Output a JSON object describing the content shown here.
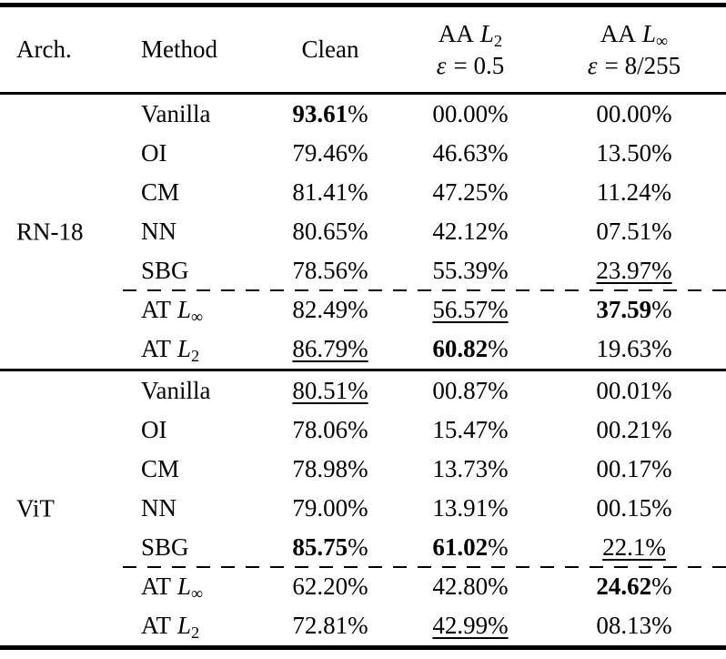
{
  "table": {
    "percent_sign": "%",
    "header": {
      "arch": "Arch.",
      "method": "Method",
      "clean": "Clean",
      "aa_l2": {
        "label": "AA",
        "var": "L",
        "sub": "2",
        "eps_sym": "ε",
        "eps_val": "= 0.5"
      },
      "aa_linf": {
        "label": "AA",
        "var": "L",
        "sub": "∞",
        "eps_sym": "ε",
        "eps_val": "= 8/255"
      }
    },
    "sections": [
      {
        "arch": "RN-18",
        "rows": [
          {
            "method": {
              "text": "Vanilla"
            },
            "cells": [
              {
                "v": "93.61",
                "bold": true
              },
              {
                "v": "00.00"
              },
              {
                "v": "00.00"
              }
            ]
          },
          {
            "method": {
              "text": "OI"
            },
            "cells": [
              {
                "v": "79.46"
              },
              {
                "v": "46.63"
              },
              {
                "v": "13.50"
              }
            ]
          },
          {
            "method": {
              "text": "CM"
            },
            "cells": [
              {
                "v": "81.41"
              },
              {
                "v": "47.25"
              },
              {
                "v": "11.24"
              }
            ]
          },
          {
            "method": {
              "text": "NN"
            },
            "cells": [
              {
                "v": "80.65"
              },
              {
                "v": "42.12"
              },
              {
                "v": "07.51"
              }
            ]
          },
          {
            "method": {
              "text": "SBG"
            },
            "cells": [
              {
                "v": "78.56"
              },
              {
                "v": "55.39"
              },
              {
                "v": "23.97",
                "underline": true
              }
            ]
          },
          {
            "method": {
              "text": "AT",
              "var": "L",
              "sub": "∞"
            },
            "dashed_before": true,
            "cells": [
              {
                "v": "82.49"
              },
              {
                "v": "56.57",
                "underline": true
              },
              {
                "v": "37.59",
                "bold": true
              }
            ]
          },
          {
            "method": {
              "text": "AT",
              "var": "L",
              "sub": "2"
            },
            "cells": [
              {
                "v": "86.79",
                "underline": true
              },
              {
                "v": "60.82",
                "bold": true
              },
              {
                "v": "19.63"
              }
            ]
          }
        ]
      },
      {
        "arch": "ViT",
        "rows": [
          {
            "method": {
              "text": "Vanilla"
            },
            "cells": [
              {
                "v": "80.51",
                "underline": true
              },
              {
                "v": "00.87"
              },
              {
                "v": "00.01"
              }
            ]
          },
          {
            "method": {
              "text": "OI"
            },
            "cells": [
              {
                "v": "78.06"
              },
              {
                "v": "15.47"
              },
              {
                "v": "00.21"
              }
            ]
          },
          {
            "method": {
              "text": "CM"
            },
            "cells": [
              {
                "v": "78.98"
              },
              {
                "v": "13.73"
              },
              {
                "v": "00.17"
              }
            ]
          },
          {
            "method": {
              "text": "NN"
            },
            "cells": [
              {
                "v": "79.00"
              },
              {
                "v": "13.91"
              },
              {
                "v": "00.15"
              }
            ]
          },
          {
            "method": {
              "text": "SBG"
            },
            "cells": [
              {
                "v": "85.75",
                "bold": true
              },
              {
                "v": "61.02",
                "bold": true
              },
              {
                "v": "22.1",
                "underline": true
              }
            ]
          },
          {
            "method": {
              "text": "AT",
              "var": "L",
              "sub": "∞"
            },
            "dashed_before": true,
            "cells": [
              {
                "v": "62.20"
              },
              {
                "v": "42.80"
              },
              {
                "v": "24.62",
                "bold": true
              }
            ]
          },
          {
            "method": {
              "text": "AT",
              "var": "L",
              "sub": "2"
            },
            "cells": [
              {
                "v": "72.81"
              },
              {
                "v": "42.99",
                "underline": true
              },
              {
                "v": "08.13"
              }
            ]
          }
        ]
      }
    ]
  }
}
